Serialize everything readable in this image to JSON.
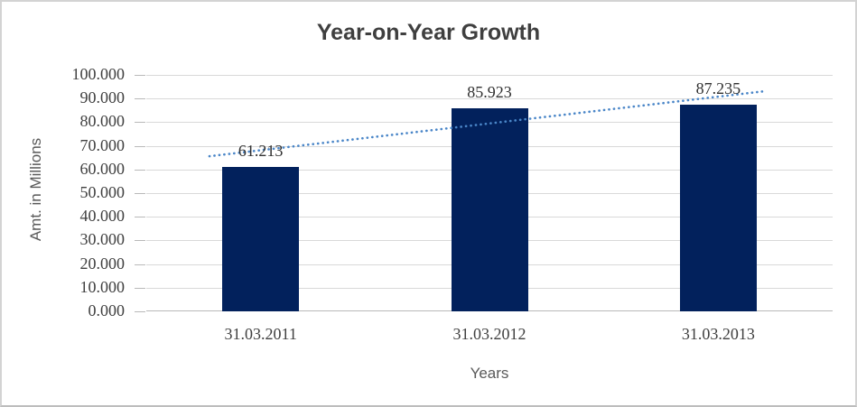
{
  "chart_data": {
    "type": "bar",
    "title": "Year-on-Year Growth",
    "categories": [
      "31.03.2011",
      "31.03.2012",
      "31.03.2013"
    ],
    "values": [
      61.213,
      85.923,
      87.235
    ],
    "data_labels": [
      "61.213",
      "85.923",
      "87.235"
    ],
    "xlabel": "Years",
    "ylabel": "Amt. in Millions",
    "ylim": [
      0,
      100
    ],
    "ytick_step": 10,
    "ytick_labels": [
      "0.000",
      "10.000",
      "20.000",
      "30.000",
      "40.000",
      "50.000",
      "60.000",
      "70.000",
      "80.000",
      "90.000",
      "100.000"
    ],
    "grid": true,
    "legend": "none",
    "bar_color": "#02215c",
    "gridline_color": "#d9d9d9",
    "axis_color": "#b9b9b9",
    "tick_text_color": "#404040",
    "title_color": "#3f3f3f",
    "trendline": {
      "type": "linear",
      "style": "dotted",
      "color": "#4a86c8",
      "points": [
        {
          "x_frac": 0.092,
          "value": 65.6
        },
        {
          "x_frac": 0.901,
          "value": 93.1
        }
      ]
    }
  }
}
